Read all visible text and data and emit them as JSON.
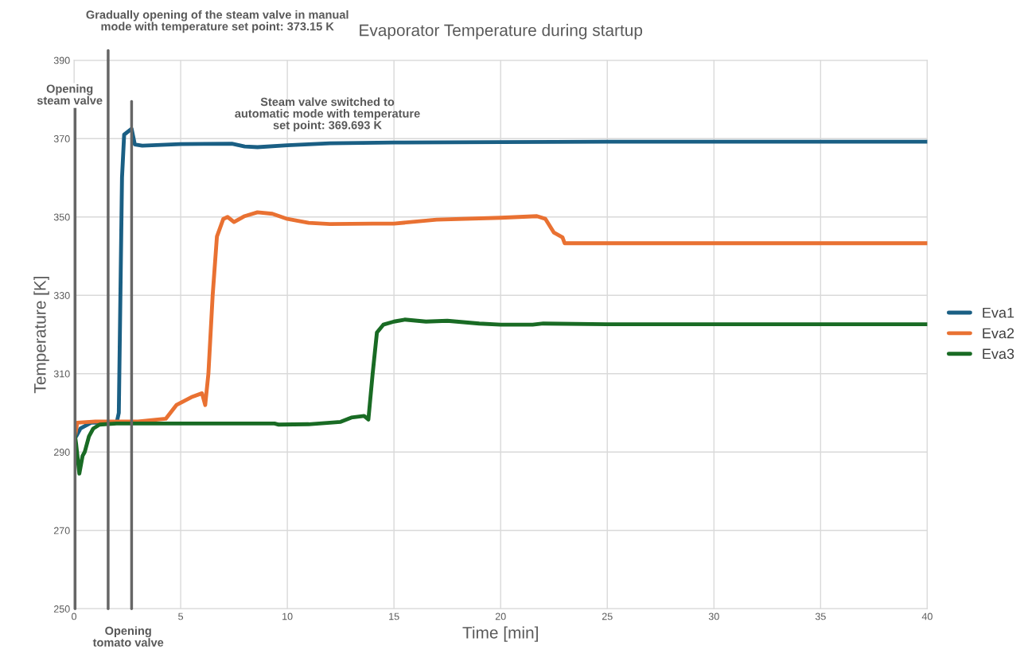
{
  "chart_data": {
    "type": "line",
    "title": "Evaporator Temperature during startup",
    "xlabel": "Time [min]",
    "ylabel": "Temperature [K]",
    "xlim": [
      0,
      40
    ],
    "xticks": [
      0,
      5,
      10,
      15,
      20,
      25,
      30,
      35,
      40
    ],
    "ylim": [
      250,
      390
    ],
    "yticks": [
      250,
      270,
      290,
      310,
      330,
      350,
      370,
      390
    ],
    "grid": true,
    "legend": "right",
    "line_style": "solid",
    "marker": "none",
    "series": [
      {
        "name": "Eva1",
        "color": "#1a5f84",
        "x": [
          0.1,
          0.3,
          0.8,
          2.0,
          2.1,
          2.25,
          2.35,
          2.7,
          2.85,
          3.2,
          5,
          7.4,
          8.0,
          8.6,
          10,
          12,
          15,
          20,
          25,
          30,
          40
        ],
        "values": [
          294,
          296,
          297.5,
          297.5,
          300,
          360,
          371,
          372.5,
          368.5,
          368.2,
          368.6,
          368.7,
          368.0,
          367.8,
          368.3,
          368.8,
          369.0,
          369.1,
          369.2,
          369.2,
          369.2
        ]
      },
      {
        "name": "Eva2",
        "color": "#e97132",
        "x": [
          0.05,
          0.15,
          1,
          3,
          4.3,
          4.8,
          5.5,
          6.0,
          6.15,
          6.3,
          6.5,
          6.7,
          7.0,
          7.2,
          7.5,
          8,
          8.6,
          9.3,
          10,
          11,
          12,
          14,
          15,
          17,
          20,
          21.7,
          22.1,
          22.5,
          22.9,
          23,
          30,
          40
        ],
        "values": [
          294,
          297.5,
          297.8,
          297.8,
          298.5,
          302,
          304,
          305,
          302,
          310,
          330,
          345,
          349.5,
          350,
          348.7,
          350.2,
          351.2,
          350.8,
          349.5,
          348.5,
          348.2,
          348.3,
          348.3,
          349.3,
          349.8,
          350.2,
          349.5,
          346,
          344.8,
          343.3,
          343.3,
          343.3
        ]
      },
      {
        "name": "Eva3",
        "color": "#196b24",
        "x": [
          0,
          0.1,
          0.25,
          0.4,
          0.5,
          0.7,
          0.9,
          1.2,
          2,
          9.4,
          9.6,
          11,
          12.5,
          13,
          13.6,
          13.8,
          14.0,
          14.2,
          14.5,
          15,
          15.5,
          16.5,
          17.5,
          19,
          20,
          21.5,
          22,
          25,
          40
        ],
        "values": [
          296,
          292,
          284.5,
          289,
          290,
          294,
          296,
          297,
          297.3,
          297.3,
          297,
          297.1,
          297.7,
          298.8,
          299.2,
          298.3,
          310,
          320.5,
          322.5,
          323.3,
          323.8,
          323.3,
          323.5,
          322.8,
          322.5,
          322.5,
          322.8,
          322.6,
          322.6
        ]
      }
    ],
    "ref_lines": [
      {
        "axis": "x",
        "value": 0.05,
        "color": "#666666"
      },
      {
        "axis": "x",
        "value": 1.6,
        "color": "#666666"
      },
      {
        "axis": "x",
        "value": 2.7,
        "color": "#666666"
      }
    ],
    "annotations": [
      "Opening\nsteam valve",
      "Opening\ntomato valve",
      "Gradually opening of the steam valve in manual\nmode with temperature set point: 373.15 K",
      "Steam valve switched to\nautomatic mode with temperature\nset point: 369.693 K"
    ]
  }
}
